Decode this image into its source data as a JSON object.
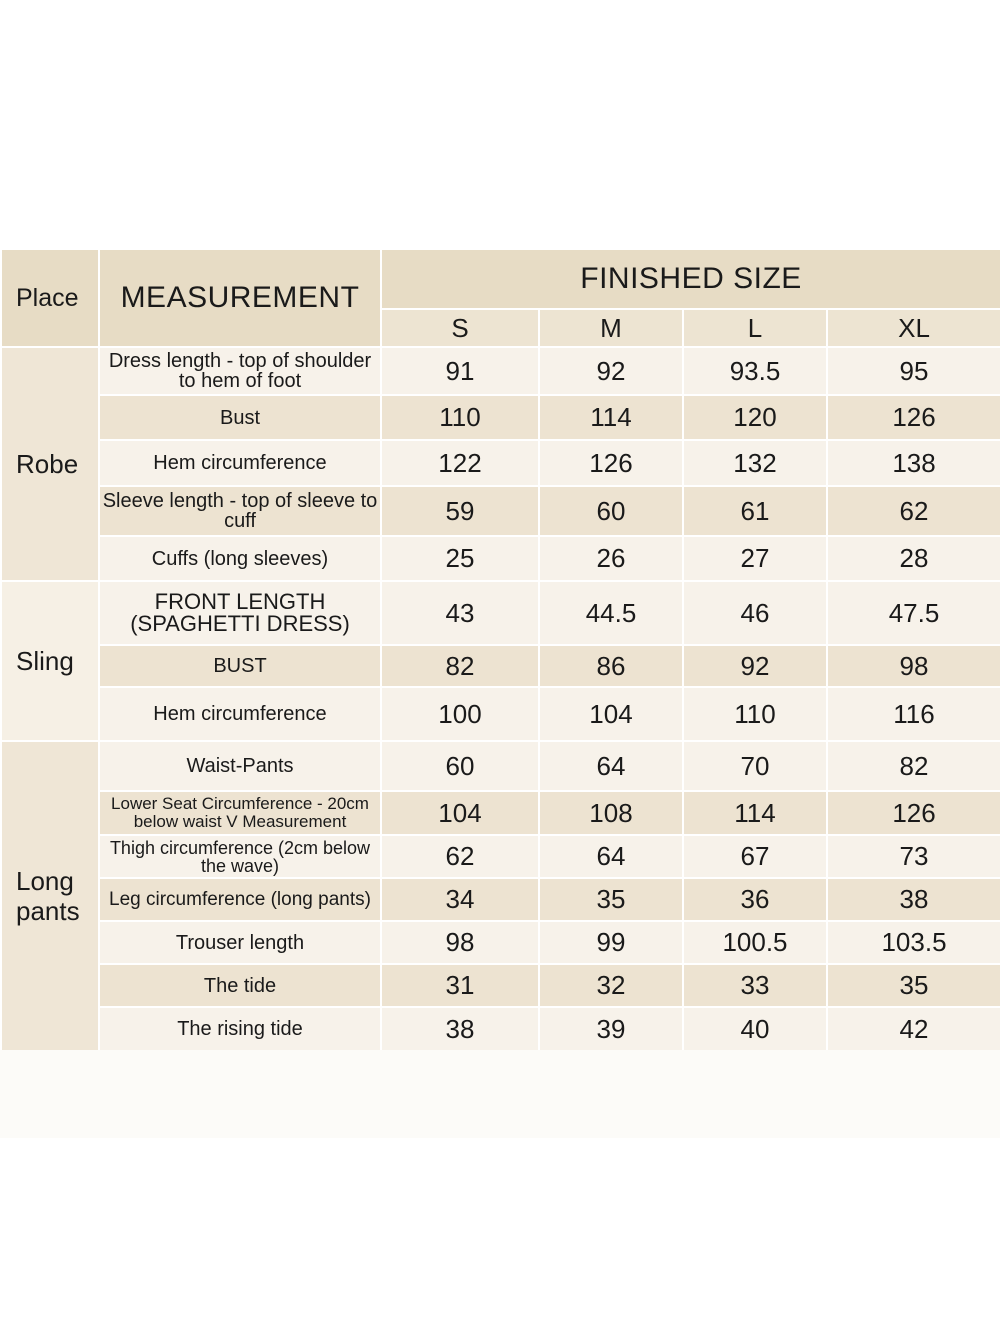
{
  "header": {
    "place": "Place",
    "measurement": "MEASUREMENT",
    "finished_size": "FINISHED SIZE",
    "sizes": [
      "S",
      "M",
      "L",
      "XL"
    ]
  },
  "groups": {
    "robe": {
      "place": "Robe",
      "rows": [
        {
          "measurement": "Dress length - top of shoulder to hem of foot",
          "values": [
            "91",
            "92",
            "93.5",
            "95"
          ]
        },
        {
          "measurement": "Bust",
          "values": [
            "110",
            "114",
            "120",
            "126"
          ]
        },
        {
          "measurement": "Hem circumference",
          "values": [
            "122",
            "126",
            "132",
            "138"
          ]
        },
        {
          "measurement": "Sleeve length - top of sleeve to cuff",
          "values": [
            "59",
            "60",
            "61",
            "62"
          ]
        },
        {
          "measurement": "Cuffs (long sleeves)",
          "values": [
            "25",
            "26",
            "27",
            "28"
          ]
        }
      ]
    },
    "sling": {
      "place": "Sling",
      "rows": [
        {
          "measurement": "FRONT LENGTH (SPAGHETTI DRESS)",
          "values": [
            "43",
            "44.5",
            "46",
            "47.5"
          ]
        },
        {
          "measurement": "BUST",
          "values": [
            "82",
            "86",
            "92",
            "98"
          ]
        },
        {
          "measurement": "Hem circumference",
          "values": [
            "100",
            "104",
            "110",
            "116"
          ]
        }
      ]
    },
    "pants": {
      "place": "Long pants",
      "rows": [
        {
          "measurement": "Waist-Pants",
          "values": [
            "60",
            "64",
            "70",
            "82"
          ]
        },
        {
          "measurement": "Lower Seat Circumference - 20cm below waist V Measurement",
          "values": [
            "104",
            "108",
            "114",
            "126"
          ]
        },
        {
          "measurement": "Thigh circumference (2cm below the wave)",
          "values": [
            "62",
            "64",
            "67",
            "73"
          ]
        },
        {
          "measurement": "Leg circumference (long pants)",
          "values": [
            "34",
            "35",
            "36",
            "38"
          ]
        },
        {
          "measurement": "Trouser length",
          "values": [
            "98",
            "99",
            "100.5",
            "103.5"
          ]
        },
        {
          "measurement": "The tide",
          "values": [
            "31",
            "32",
            "33",
            "35"
          ]
        },
        {
          "measurement": "The rising tide",
          "values": [
            "38",
            "39",
            "40",
            "42"
          ]
        }
      ]
    }
  }
}
